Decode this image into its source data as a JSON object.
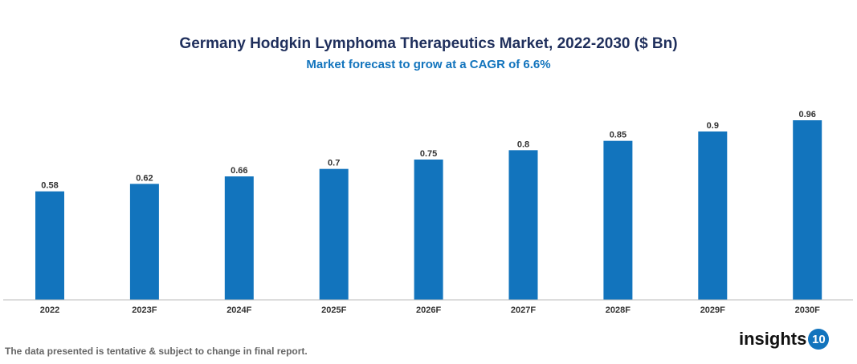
{
  "chart_data": {
    "type": "bar",
    "title": "Germany Hodgkin Lymphoma Therapeutics Market, 2022-2030 ($ Bn)",
    "subtitle": "Market forecast to grow at a CAGR of 6.6%",
    "categories": [
      "2022",
      "2023F",
      "2024F",
      "2025F",
      "2026F",
      "2027F",
      "2028F",
      "2029F",
      "2030F"
    ],
    "values": [
      0.58,
      0.62,
      0.66,
      0.7,
      0.75,
      0.8,
      0.85,
      0.9,
      0.96
    ],
    "data_labels": [
      "0.58",
      "0.62",
      "0.66",
      "0.7",
      "0.75",
      "0.8",
      "0.85",
      "0.9",
      "0.96"
    ],
    "xlabel": "",
    "ylabel": "",
    "ylim": [
      0,
      0.96
    ],
    "grid": false,
    "bar_color": "#1274bd"
  },
  "footnote": "The data presented is tentative & subject to change in final report.",
  "logo": {
    "text": "insights",
    "number": "10"
  }
}
